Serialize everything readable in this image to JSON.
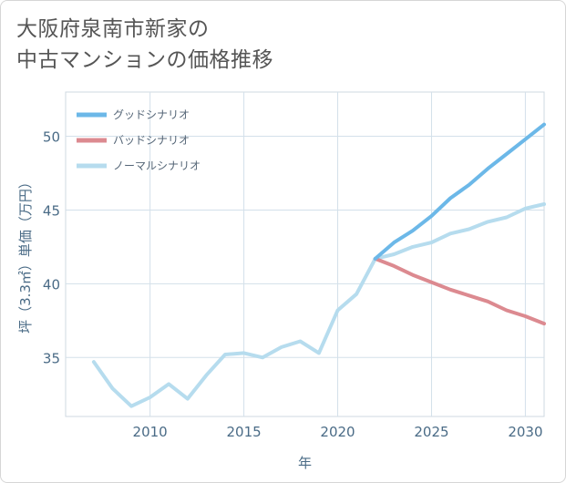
{
  "title_lines": [
    "大阪府泉南市新家の",
    "中古マンションの価格推移"
  ],
  "chart_data": {
    "type": "line",
    "title": "大阪府泉南市新家の中古マンションの価格推移",
    "xlabel": "年",
    "ylabel": "坪（3.3㎡）単価（万円）",
    "xlim": [
      2005.5,
      2031
    ],
    "ylim": [
      31,
      53
    ],
    "xticks": [
      2010,
      2015,
      2020,
      2025,
      2030
    ],
    "yticks": [
      35,
      40,
      45,
      50
    ],
    "grid": true,
    "legend_position": "top-left",
    "series": [
      {
        "name": "グッドシナリオ",
        "color": "#6cb8e8",
        "x": [
          2022,
          2023,
          2024,
          2025,
          2026,
          2027,
          2028,
          2029,
          2030,
          2031
        ],
        "y": [
          41.7,
          42.8,
          43.6,
          44.6,
          45.8,
          46.7,
          47.8,
          48.8,
          49.8,
          50.8
        ]
      },
      {
        "name": "バッドシナリオ",
        "color": "#dc8a90",
        "x": [
          2022,
          2023,
          2024,
          2025,
          2026,
          2027,
          2028,
          2029,
          2030,
          2031
        ],
        "y": [
          41.7,
          41.2,
          40.6,
          40.1,
          39.6,
          39.2,
          38.8,
          38.2,
          37.8,
          37.3
        ]
      },
      {
        "name": "ノーマルシナリオ",
        "color": "#b6dcee",
        "x": [
          2007,
          2008,
          2009,
          2010,
          2011,
          2012,
          2013,
          2014,
          2015,
          2016,
          2017,
          2018,
          2019,
          2020,
          2021,
          2022,
          2023,
          2024,
          2025,
          2026,
          2027,
          2028,
          2029,
          2030,
          2031
        ],
        "y": [
          34.7,
          32.9,
          31.7,
          32.3,
          33.2,
          32.2,
          33.8,
          35.2,
          35.3,
          35.0,
          35.7,
          36.1,
          35.3,
          38.2,
          39.3,
          41.7,
          42.0,
          42.5,
          42.8,
          43.4,
          43.7,
          44.2,
          44.5,
          45.1,
          45.4
        ]
      }
    ]
  }
}
